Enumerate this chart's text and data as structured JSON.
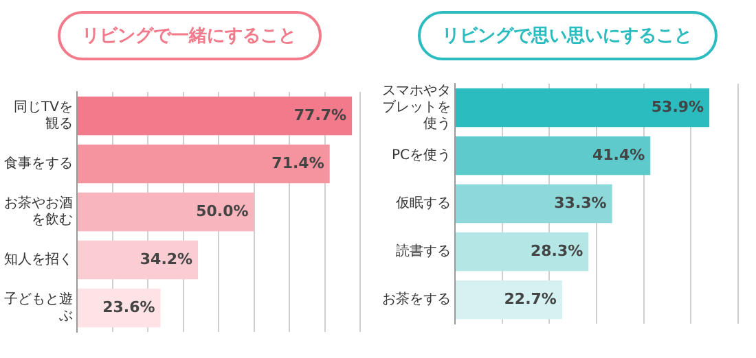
{
  "chart_data": [
    {
      "type": "bar",
      "orientation": "horizontal",
      "title": "リビングで一緒にすること",
      "categories": [
        "同じTVを観る",
        "食事をする",
        "お茶やお酒を飲む",
        "知人を招く",
        "子どもと遊ぶ"
      ],
      "values": [
        77.7,
        71.4,
        50.0,
        34.2,
        23.6
      ],
      "colors": [
        "#f27a8a",
        "#f5939f",
        "#f8b5bd",
        "#facdd3",
        "#fde3e6"
      ],
      "value_labels": [
        "77.7%",
        "71.4%",
        "50.0%",
        "34.2%",
        "23.6%"
      ],
      "xlim": [
        0,
        80
      ],
      "xticks": [
        {
          "value": 0,
          "label": null
        },
        {
          "value": 10,
          "label": null
        },
        {
          "value": 20,
          "label": null
        },
        {
          "value": 30,
          "label": null
        },
        {
          "value": 40,
          "label": null
        },
        {
          "value": 50,
          "label": null
        },
        {
          "value": 60,
          "label": null
        },
        {
          "value": 70,
          "label": null
        },
        {
          "value": 80,
          "label": null
        }
      ],
      "grid": "x",
      "tick_labels": "y",
      "legend": false
    },
    {
      "type": "bar",
      "orientation": "horizontal",
      "title": "リビングで思い思いにすること",
      "categories": [
        "スマホやタブレットを使う",
        "PCを使う",
        "仮眠する",
        "読書する",
        "お茶をする"
      ],
      "values": [
        53.9,
        41.4,
        33.3,
        28.3,
        22.7
      ],
      "colors": [
        "#2bbcbf",
        "#5fcacc",
        "#8dd9d9",
        "#b4e6e6",
        "#d5f1f2"
      ],
      "value_labels": [
        "53.9%",
        "41.4%",
        "33.3%",
        "28.3%",
        "22.7%"
      ],
      "xlim": [
        0,
        60
      ],
      "xticks": [
        {
          "value": 0,
          "label": null
        },
        {
          "value": 10,
          "label": null
        },
        {
          "value": 20,
          "label": null
        },
        {
          "value": 30,
          "label": null
        },
        {
          "value": 40,
          "label": null
        },
        {
          "value": 50,
          "label": null
        },
        {
          "value": 60,
          "label": null
        }
      ],
      "grid": "x",
      "tick_labels": "y",
      "legend": false
    }
  ]
}
